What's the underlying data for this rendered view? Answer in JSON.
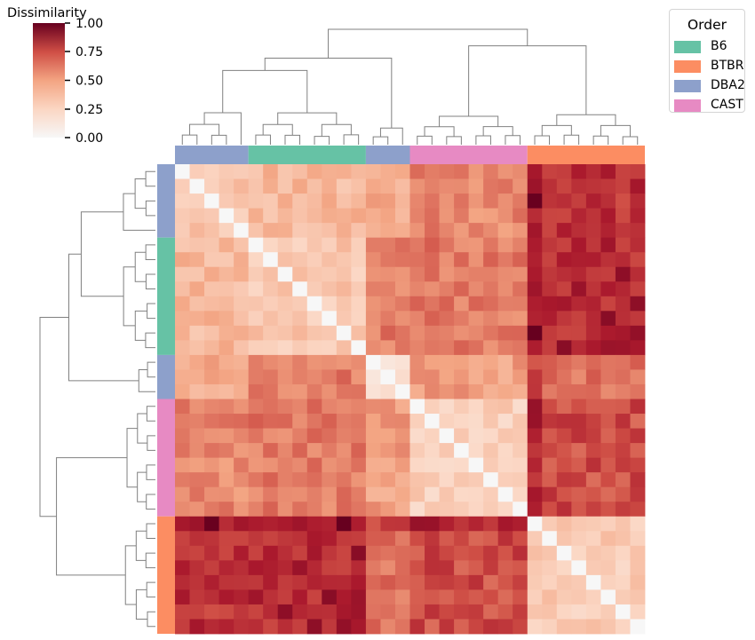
{
  "chart_data": {
    "type": "heatmap",
    "title": "",
    "colorbar": {
      "label": "Dissimilarity",
      "ticks": [
        "1.00",
        "0.75",
        "0.50",
        "0.25",
        "0.00"
      ],
      "range": [
        0,
        1
      ],
      "colormap": "RdBu_r (reds)"
    },
    "legend": {
      "title": "Order",
      "placement": "top-right",
      "entries": [
        {
          "label": "B6",
          "color": "#66c2a5"
        },
        {
          "label": "BTBR",
          "color": "#fc8d62"
        },
        {
          "label": "DBA2",
          "color": "#8da0cb"
        },
        {
          "label": "CAST",
          "color": "#e78ac3"
        }
      ]
    },
    "row_groups": [
      {
        "group": "DBA2",
        "count": 5
      },
      {
        "group": "B6",
        "count": 8
      },
      {
        "group": "DBA2",
        "count": 3
      },
      {
        "group": "CAST",
        "count": 8
      },
      {
        "group": "BTBR",
        "count": 8
      }
    ],
    "col_groups": [
      {
        "group": "DBA2",
        "count": 5
      },
      {
        "group": "B6",
        "count": 8
      },
      {
        "group": "DBA2",
        "count": 3
      },
      {
        "group": "CAST",
        "count": 8
      },
      {
        "group": "BTBR",
        "count": 8
      }
    ],
    "group_mean_dissimilarity": {
      "groups": [
        "DBA2",
        "B6",
        "DBA2",
        "CAST",
        "BTBR"
      ],
      "matrix": [
        [
          0.35,
          0.4,
          0.45,
          0.58,
          0.82
        ],
        [
          0.4,
          0.32,
          0.62,
          0.62,
          0.86
        ],
        [
          0.45,
          0.62,
          0.2,
          0.5,
          0.65
        ],
        [
          0.58,
          0.62,
          0.5,
          0.28,
          0.75
        ],
        [
          0.82,
          0.86,
          0.65,
          0.75,
          0.3
        ]
      ]
    },
    "diagonal": 0.0,
    "n_samples": 32,
    "dendrograms": [
      "top",
      "left"
    ]
  }
}
